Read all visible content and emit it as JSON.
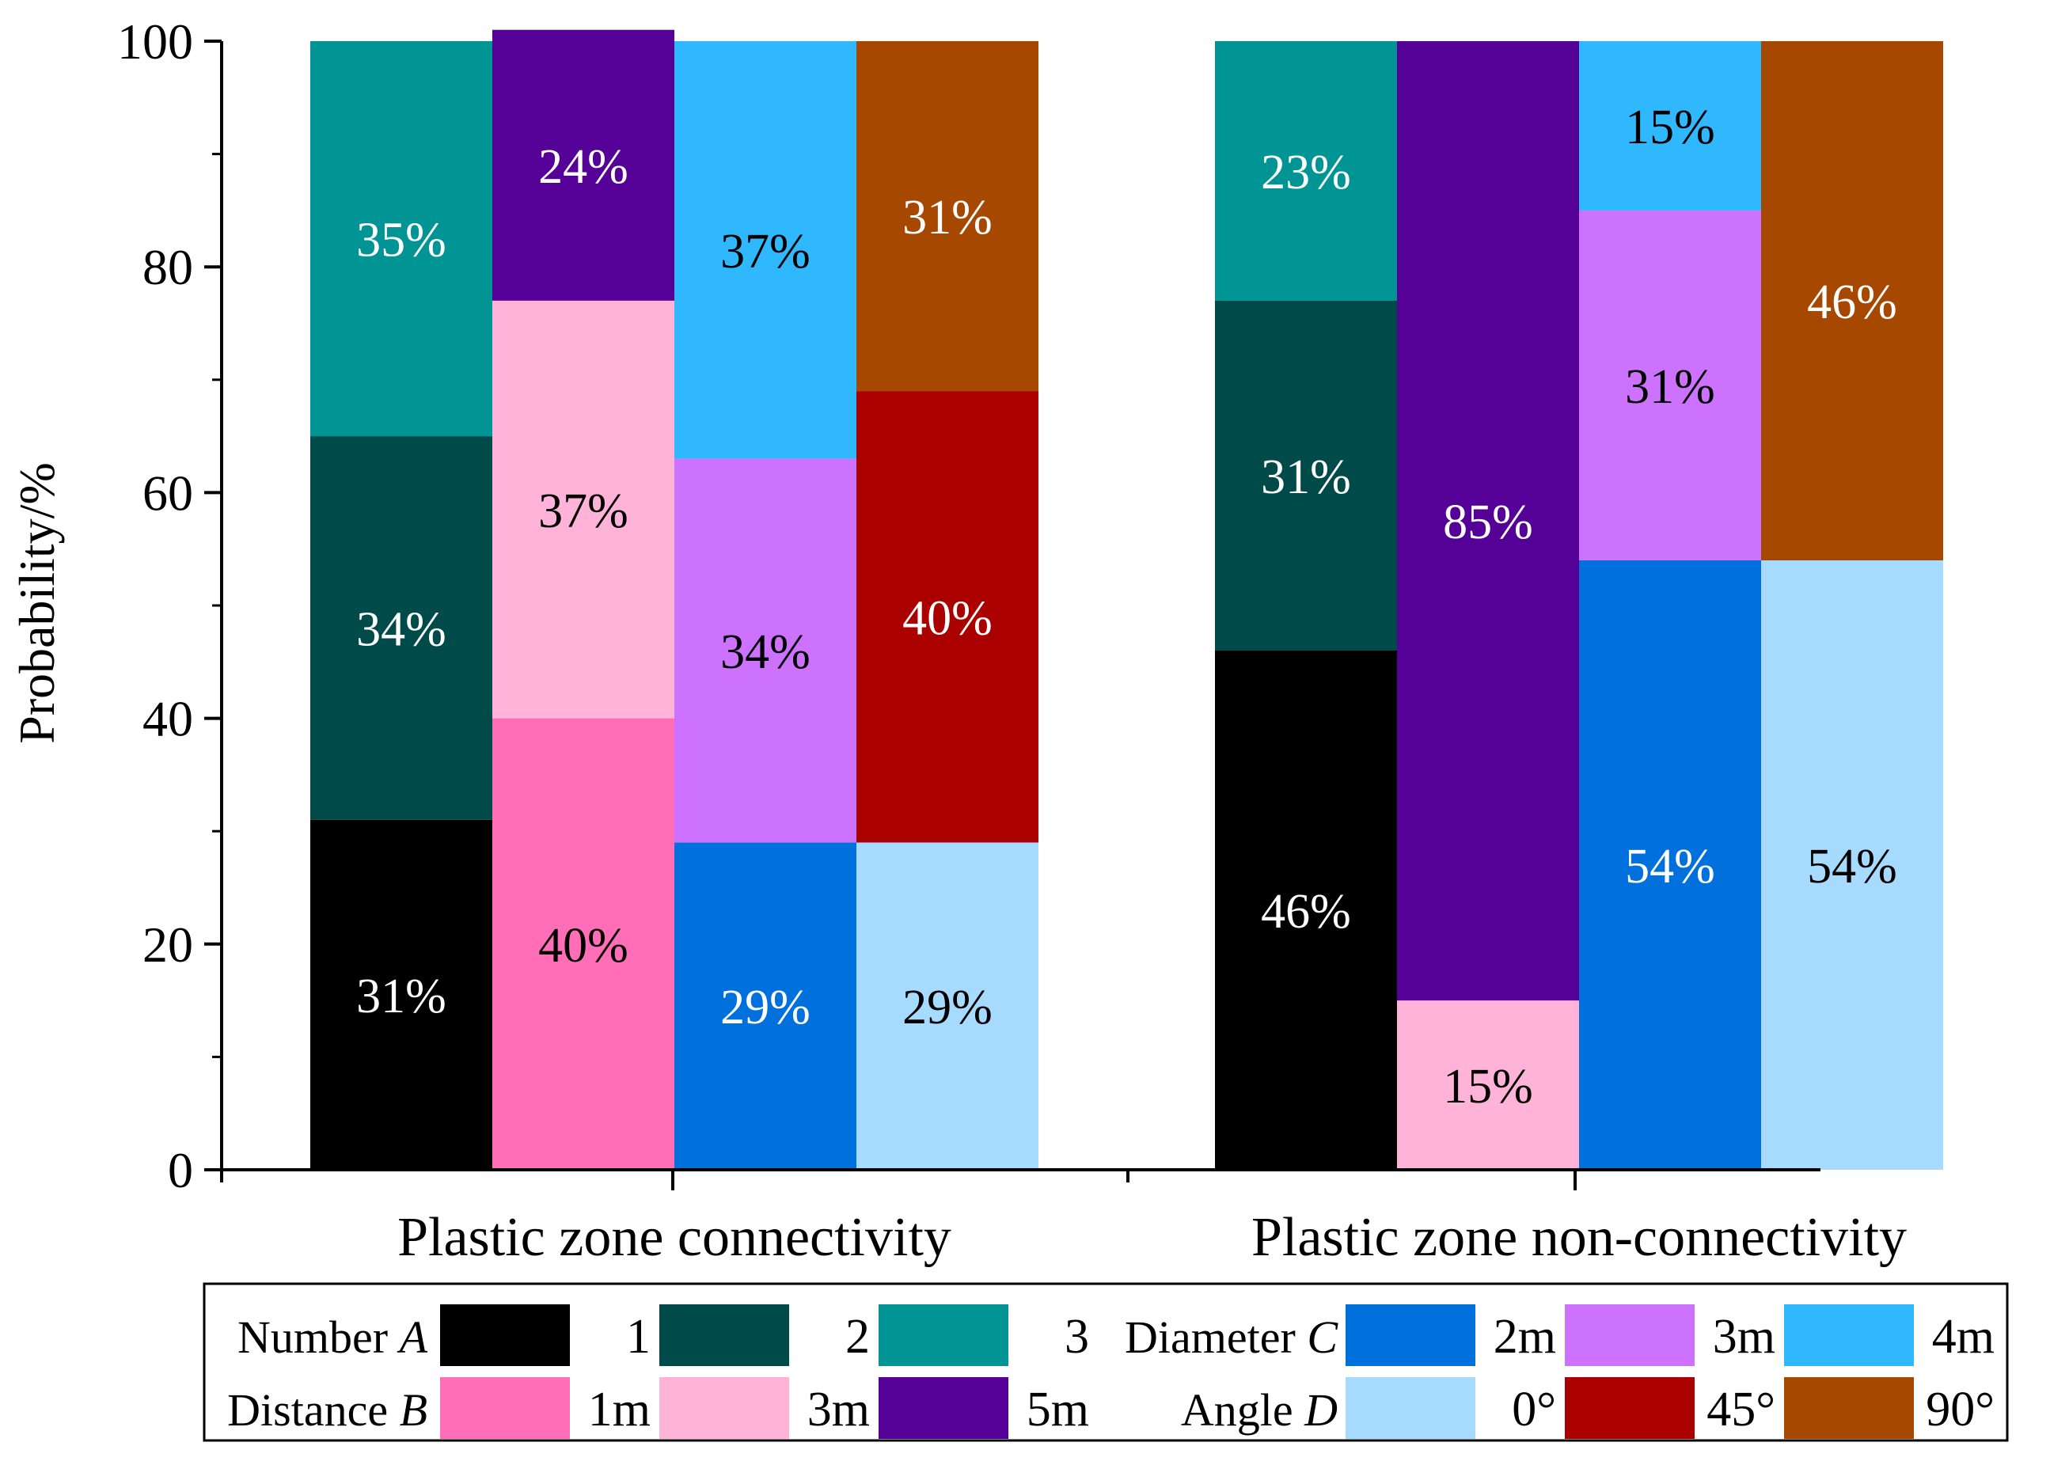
{
  "chart_data": {
    "type": "bar",
    "stacked": true,
    "title": "",
    "xlabel": "",
    "ylabel": "Probability/%",
    "ylim": [
      0,
      100
    ],
    "yticks": [
      "0",
      "20",
      "40",
      "60",
      "80",
      "100"
    ],
    "grid": false,
    "legend_position": "bottom",
    "groups": [
      {
        "label": "Plastic zone connectivity",
        "bars": [
          {
            "factor": "Number A",
            "segments": [
              {
                "level": "1",
                "value": 31,
                "label": "31%",
                "color": "#000000",
                "text_color": "#ffffff"
              },
              {
                "level": "2",
                "value": 34,
                "label": "34%",
                "color": "#004a4a",
                "text_color": "#ffffff"
              },
              {
                "level": "3",
                "value": 35,
                "label": "35%",
                "color": "#009494",
                "text_color": "#ffffff"
              }
            ]
          },
          {
            "factor": "Distance B",
            "segments": [
              {
                "level": "1m",
                "value": 40,
                "label": "40%",
                "color": "#ff6eb7",
                "text_color": "#000000"
              },
              {
                "level": "3m",
                "value": 37,
                "label": "37%",
                "color": "#ffb3d9",
                "text_color": "#000000"
              },
              {
                "level": "5m",
                "value": 24,
                "label": "24%",
                "color": "#550096",
                "text_color": "#ffffff"
              }
            ]
          },
          {
            "factor": "Diameter C",
            "segments": [
              {
                "level": "2m",
                "value": 29,
                "label": "29%",
                "color": "#0070dd",
                "text_color": "#ffffff"
              },
              {
                "level": "3m",
                "value": 34,
                "label": "34%",
                "color": "#cc72ff",
                "text_color": "#000000"
              },
              {
                "level": "4m",
                "value": 37,
                "label": "37%",
                "color": "#30b8ff",
                "text_color": "#000000"
              }
            ]
          },
          {
            "factor": "Angle D",
            "segments": [
              {
                "level": "0°",
                "value": 29,
                "label": "29%",
                "color": "#a6dbff",
                "text_color": "#000000"
              },
              {
                "level": "45°",
                "value": 40,
                "label": "40%",
                "color": "#aa0000",
                "text_color": "#ffffff"
              },
              {
                "level": "90°",
                "value": 31,
                "label": "31%",
                "color": "#a64800",
                "text_color": "#ffffff"
              }
            ]
          }
        ]
      },
      {
        "label": "Plastic zone non-connectivity",
        "bars": [
          {
            "factor": "Number A",
            "segments": [
              {
                "level": "1",
                "value": 46,
                "label": "46%",
                "color": "#000000",
                "text_color": "#ffffff"
              },
              {
                "level": "2",
                "value": 31,
                "label": "31%",
                "color": "#004a4a",
                "text_color": "#ffffff"
              },
              {
                "level": "3",
                "value": 23,
                "label": "23%",
                "color": "#009494",
                "text_color": "#ffffff"
              }
            ]
          },
          {
            "factor": "Distance B",
            "segments": [
              {
                "level": "3m",
                "value": 15,
                "label": "15%",
                "color": "#ffb3d9",
                "text_color": "#000000"
              },
              {
                "level": "5m",
                "value": 85,
                "label": "85%",
                "color": "#550096",
                "text_color": "#ffffff"
              }
            ]
          },
          {
            "factor": "Diameter C",
            "segments": [
              {
                "level": "2m",
                "value": 54,
                "label": "54%",
                "color": "#0070dd",
                "text_color": "#ffffff"
              },
              {
                "level": "3m",
                "value": 31,
                "label": "31%",
                "color": "#cc72ff",
                "text_color": "#000000"
              },
              {
                "level": "4m",
                "value": 15,
                "label": "15%",
                "color": "#30b8ff",
                "text_color": "#000000"
              }
            ]
          },
          {
            "factor": "Angle D",
            "segments": [
              {
                "level": "0°",
                "value": 54,
                "label": "54%",
                "color": "#a6dbff",
                "text_color": "#000000"
              },
              {
                "level": "90°",
                "value": 46,
                "label": "46%",
                "color": "#a64800",
                "text_color": "#ffffff"
              }
            ]
          }
        ]
      }
    ],
    "legend": [
      {
        "title": "Number",
        "var": "A",
        "entries": [
          {
            "label": "1",
            "color": "#000000"
          },
          {
            "label": "2",
            "color": "#004a4a"
          },
          {
            "label": "3",
            "color": "#009494"
          }
        ]
      },
      {
        "title": "Diameter",
        "var": "C",
        "entries": [
          {
            "label": "2m",
            "color": "#0070dd"
          },
          {
            "label": "3m",
            "color": "#cc72ff"
          },
          {
            "label": "4m",
            "color": "#30b8ff"
          }
        ]
      },
      {
        "title": "Distance",
        "var": "B",
        "entries": [
          {
            "label": "1m",
            "color": "#ff6eb7"
          },
          {
            "label": "3m",
            "color": "#ffb3d9"
          },
          {
            "label": "5m",
            "color": "#550096"
          }
        ]
      },
      {
        "title": "Angle",
        "var": "D",
        "entries": [
          {
            "label": "0°",
            "color": "#a6dbff"
          },
          {
            "label": "45°",
            "color": "#aa0000"
          },
          {
            "label": "90°",
            "color": "#a64800"
          }
        ]
      }
    ]
  }
}
